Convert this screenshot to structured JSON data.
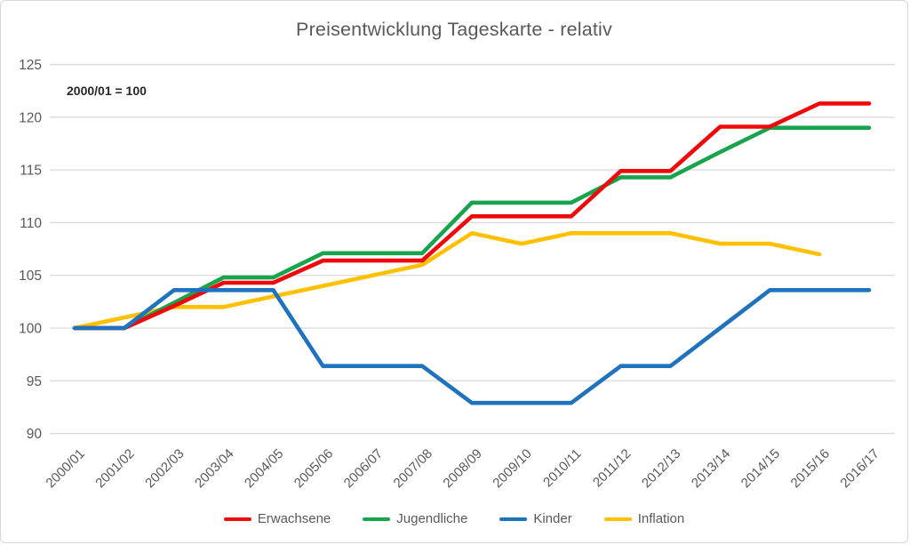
{
  "title": "Preisentwicklung Tageskarte - relativ",
  "annotation": "2000/01 = 100",
  "colors": {
    "erwachsene": "#ee0a0a",
    "jugendliche": "#18a34d",
    "kinder": "#1f72be",
    "inflation": "#ffc000",
    "gridline": "#d9d9d9",
    "axis_text": "#595959",
    "title_text": "#595959"
  },
  "chart_data": {
    "type": "line",
    "title": "Preisentwicklung Tageskarte - relativ",
    "annotation": "2000/01 = 100",
    "xlabel": "",
    "ylabel": "",
    "ylim": [
      90,
      125
    ],
    "yticks": [
      125,
      120,
      115,
      110,
      105,
      100,
      95,
      90
    ],
    "grid": true,
    "legend_position": "bottom",
    "categories": [
      "2000/01",
      "2001/02",
      "2002/03",
      "2003/04",
      "2004/05",
      "2005/06",
      "2006/07",
      "2007/08",
      "2008/09",
      "2009/10",
      "2010/11",
      "2011/12",
      "2012/13",
      "2013/14",
      "2014/15",
      "2015/16",
      "2016/17"
    ],
    "series": [
      {
        "name": "Erwachsene",
        "color": "#ee0a0a",
        "values": [
          100,
          100,
          102.1,
          104.3,
          104.3,
          106.4,
          106.4,
          106.4,
          110.6,
          110.6,
          110.6,
          114.9,
          114.9,
          119.1,
          119.1,
          121.3,
          121.3
        ]
      },
      {
        "name": "Jugendliche",
        "color": "#18a34d",
        "values": [
          100,
          100,
          102.4,
          104.8,
          104.8,
          107.1,
          107.1,
          107.1,
          111.9,
          111.9,
          111.9,
          114.3,
          114.3,
          116.7,
          119,
          119,
          119
        ]
      },
      {
        "name": "Kinder",
        "color": "#1f72be",
        "values": [
          100,
          100,
          103.6,
          103.6,
          103.6,
          96.4,
          96.4,
          96.4,
          92.9,
          92.9,
          92.9,
          96.4,
          96.4,
          100,
          103.6,
          103.6,
          103.6
        ]
      },
      {
        "name": "Inflation",
        "color": "#ffc000",
        "values": [
          100,
          101,
          102,
          102,
          103,
          104,
          105,
          106,
          109,
          108,
          109,
          109,
          109,
          108,
          108,
          107,
          null
        ]
      }
    ],
    "draw_order": [
      3,
      1,
      0,
      2
    ]
  }
}
